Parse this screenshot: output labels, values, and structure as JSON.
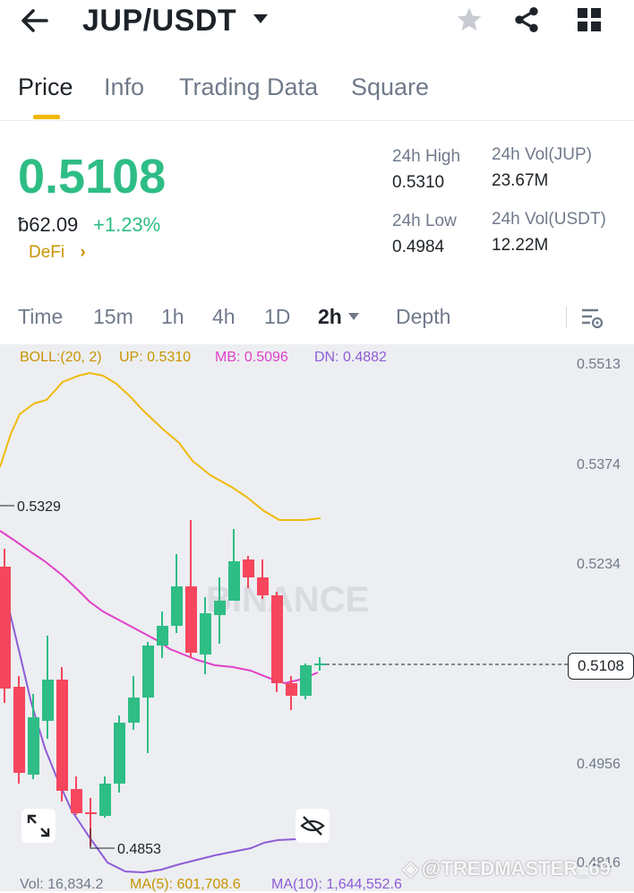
{
  "header": {
    "pair": "JUP/USDT"
  },
  "tabs": [
    {
      "label": "Price"
    },
    {
      "label": "Info"
    },
    {
      "label": "Trading Data"
    },
    {
      "label": "Square"
    }
  ],
  "ticker": {
    "price": "0.5108",
    "fiat": "ƀ62.09",
    "change": "+1.23%",
    "tag": "DeFi",
    "high_label": "24h High",
    "high": "0.5310",
    "low_label": "24h Low",
    "low": "0.4984",
    "vol_base_label": "24h Vol(JUP)",
    "vol_base": "23.67M",
    "vol_quote_label": "24h Vol(USDT)",
    "vol_quote": "12.22M"
  },
  "intervals": [
    {
      "label": "Time"
    },
    {
      "label": "15m"
    },
    {
      "label": "1h"
    },
    {
      "label": "4h"
    },
    {
      "label": "1D"
    },
    {
      "label": "2h"
    },
    {
      "label": "Depth"
    }
  ],
  "indicators": {
    "boll": "BOLL:(20, 2)",
    "up": "UP: 0.5310",
    "mb": "MB: 0.5096",
    "dn": "DN: 0.4882"
  },
  "axis": [
    "0.5513",
    "0.5374",
    "0.5234",
    "0.4956",
    "0.4816"
  ],
  "chart": {
    "current_price": "0.5108",
    "high_marker": "0.5329",
    "low_marker": "0.4853",
    "watermark": "BINANCE"
  },
  "volume": {
    "vol": "Vol: 16,834.2",
    "ma5": "MA(5): 601,708.6",
    "ma10": "MA(10): 1,644,552.6"
  },
  "overlay": {
    "watermark_user": "@TREDMASTER_69"
  },
  "colors": {
    "up": "#2ebd85",
    "down": "#f6465d",
    "accent": "#f0b90b",
    "boll_up": "#f0b90b",
    "boll_mb": "#e040c8",
    "boll_dn": "#8e5cd6"
  }
}
